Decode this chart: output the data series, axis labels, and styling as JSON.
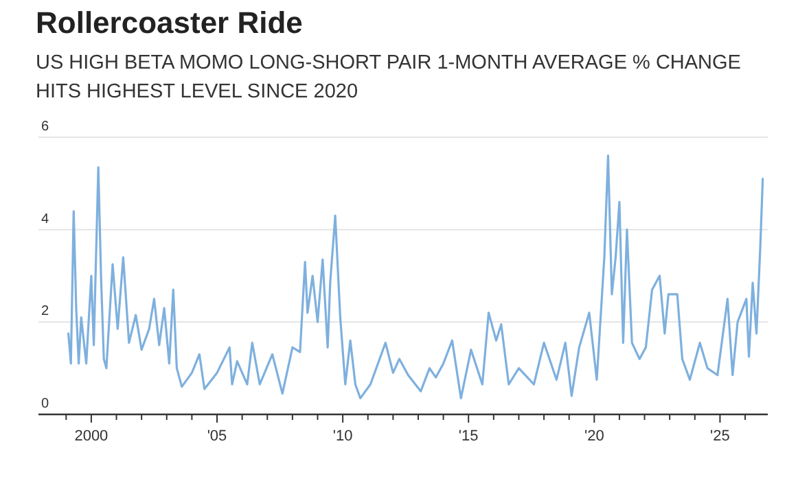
{
  "chart_data": {
    "type": "line",
    "title": "Rollercoaster Ride",
    "subtitle": "US HIGH BETA MOMO LONG-SHORT PAIR 1-MONTH AVERAGE % CHANGE HITS HIGHEST LEVEL SINCE 2020",
    "x": [
      1999.09,
      1999.19,
      1999.3,
      1999.4,
      1999.5,
      1999.6,
      1999.8,
      2000.0,
      2000.1,
      2000.28,
      2000.39,
      2000.5,
      2000.6,
      2000.85,
      2001.05,
      2001.27,
      2001.5,
      2001.77,
      2002.0,
      2002.3,
      2002.5,
      2002.7,
      2002.9,
      2003.1,
      2003.26,
      2003.4,
      2003.6,
      2004.0,
      2004.3,
      2004.5,
      2005.0,
      2005.5,
      2005.6,
      2005.8,
      2006.2,
      2006.4,
      2006.7,
      2007.2,
      2007.6,
      2008.0,
      2008.3,
      2008.5,
      2008.6,
      2008.8,
      2009.0,
      2009.2,
      2009.4,
      2009.5,
      2009.7,
      2009.9,
      2010.1,
      2010.3,
      2010.5,
      2010.7,
      2011.1,
      2011.7,
      2012.0,
      2012.25,
      2012.6,
      2013.1,
      2013.45,
      2013.7,
      2014.0,
      2014.35,
      2014.7,
      2015.1,
      2015.55,
      2015.8,
      2016.1,
      2016.3,
      2016.6,
      2017.0,
      2017.6,
      2018.0,
      2018.5,
      2018.85,
      2019.1,
      2019.4,
      2019.8,
      2020.1,
      2020.4,
      2020.55,
      2020.7,
      2020.85,
      2021.0,
      2021.15,
      2021.3,
      2021.5,
      2021.8,
      2022.05,
      2022.3,
      2022.6,
      2022.8,
      2022.95,
      2023.3,
      2023.5,
      2023.8,
      2024.2,
      2024.5,
      2024.9,
      2025.3,
      2025.5,
      2025.7,
      2026.05,
      2026.15,
      2026.3,
      2026.45,
      2026.6,
      2026.7
    ],
    "series": [
      {
        "color": "#7eb0de",
        "values": [
          1.75,
          1.1,
          4.4,
          2.3,
          1.1,
          2.1,
          1.1,
          3.0,
          1.5,
          5.35,
          2.95,
          1.2,
          1.0,
          3.25,
          1.85,
          3.4,
          1.55,
          2.15,
          1.4,
          1.85,
          2.5,
          1.5,
          2.3,
          1.1,
          2.7,
          1.0,
          0.6,
          0.9,
          1.3,
          0.55,
          0.9,
          1.45,
          0.65,
          1.15,
          0.65,
          1.55,
          0.65,
          1.3,
          0.45,
          1.45,
          1.35,
          3.3,
          2.2,
          3.0,
          2.0,
          3.35,
          1.45,
          2.85,
          4.3,
          2.1,
          0.65,
          1.6,
          0.65,
          0.35,
          0.65,
          1.55,
          0.9,
          1.2,
          0.85,
          0.5,
          1.0,
          0.8,
          1.1,
          1.6,
          0.35,
          1.4,
          0.65,
          2.2,
          1.6,
          1.95,
          0.65,
          1.0,
          0.65,
          1.55,
          0.75,
          1.55,
          0.4,
          1.45,
          2.2,
          0.75,
          3.4,
          5.6,
          2.6,
          3.4,
          4.6,
          1.55,
          4.0,
          1.55,
          1.2,
          1.45,
          2.7,
          3.0,
          1.75,
          2.6,
          2.6,
          1.2,
          0.75,
          1.55,
          1.0,
          0.85,
          2.5,
          0.85,
          2.0,
          2.5,
          1.25,
          2.85,
          1.75,
          3.6,
          5.1
        ]
      }
    ],
    "xlim": [
      1997.9,
      2026.9
    ],
    "xticks": [
      {
        "value": 1999,
        "label": null
      },
      {
        "value": 2000,
        "label": "2000"
      },
      {
        "value": 2001,
        "label": null
      },
      {
        "value": 2002,
        "label": null
      },
      {
        "value": 2003,
        "label": null
      },
      {
        "value": 2004,
        "label": null
      },
      {
        "value": 2005,
        "label": "'05"
      },
      {
        "value": 2006,
        "label": null
      },
      {
        "value": 2007,
        "label": null
      },
      {
        "value": 2008,
        "label": null
      },
      {
        "value": 2009,
        "label": null
      },
      {
        "value": 2010,
        "label": "'10"
      },
      {
        "value": 2011,
        "label": null
      },
      {
        "value": 2012,
        "label": null
      },
      {
        "value": 2013,
        "label": null
      },
      {
        "value": 2014,
        "label": null
      },
      {
        "value": 2015,
        "label": "'15"
      },
      {
        "value": 2016,
        "label": null
      },
      {
        "value": 2017,
        "label": null
      },
      {
        "value": 2018,
        "label": null
      },
      {
        "value": 2019,
        "label": null
      },
      {
        "value": 2020,
        "label": "'20"
      },
      {
        "value": 2021,
        "label": null
      },
      {
        "value": 2022,
        "label": null
      },
      {
        "value": 2023,
        "label": null
      },
      {
        "value": 2024,
        "label": null
      },
      {
        "value": 2025,
        "label": "'25"
      },
      {
        "value": 2026,
        "label": null
      }
    ],
    "ylim": [
      0,
      6
    ],
    "yticks": [
      0,
      2,
      4,
      6
    ],
    "grid": "y"
  }
}
